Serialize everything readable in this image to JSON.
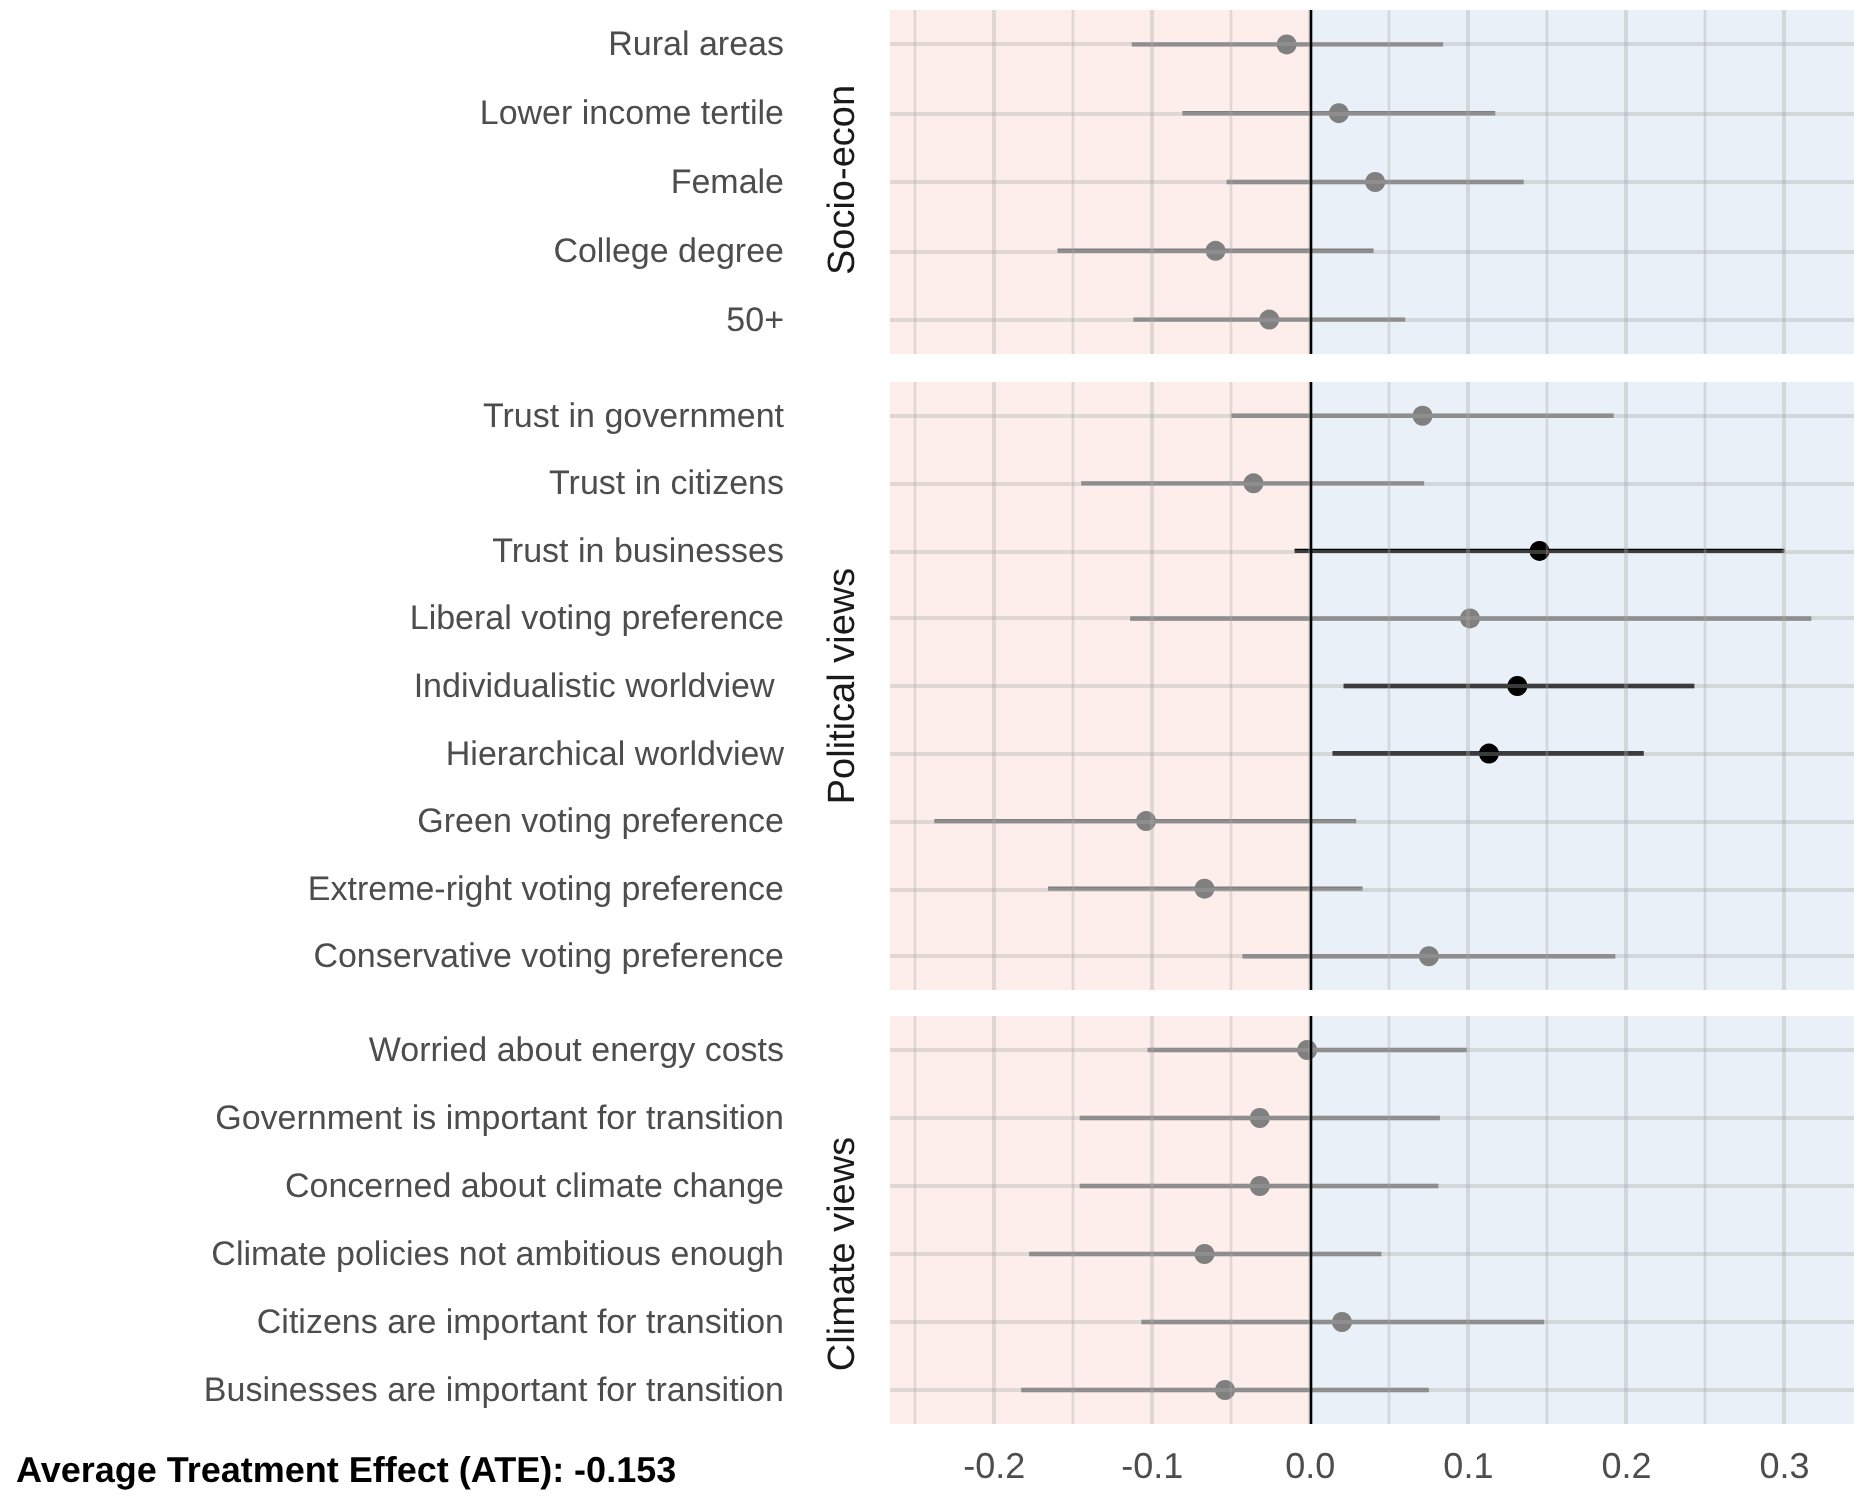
{
  "chart_data": [
    {
      "type": "scatter",
      "orientation": "horizontal",
      "ylabel": "Socio-econ",
      "categories": [
        "Rural areas",
        "Lower income tertile",
        "Female",
        "College degree",
        "50+"
      ],
      "series": [
        {
          "color": "#808080",
          "values": [
            -0.015,
            0.018,
            0.041,
            -0.06,
            -0.026
          ],
          "errors": [
            [
              -0.113,
              0.084
            ],
            [
              -0.081,
              0.117
            ],
            [
              -0.053,
              0.135
            ],
            [
              -0.16,
              0.04
            ],
            [
              -0.112,
              0.06
            ]
          ]
        }
      ],
      "xlim": [
        -0.266,
        0.344
      ],
      "xticks": [
        {
          "value": -0.25,
          "label": null
        },
        -0.2,
        {
          "value": -0.15,
          "label": null
        },
        -0.1,
        {
          "value": -0.05,
          "label": null
        },
        0,
        {
          "value": 0.05,
          "label": null
        },
        0.1,
        {
          "value": 0.15,
          "label": null
        },
        0.2,
        {
          "value": 0.25,
          "label": null
        },
        0.3
      ],
      "tick_labels": "y",
      "grid": true,
      "marker": "circle",
      "bands": [
        {
          "axis": "x",
          "from": -0.266,
          "to": 0,
          "color": "#fdeeec"
        },
        {
          "axis": "x",
          "from": 0,
          "to": 0.344,
          "color": "#e9f0f8"
        }
      ],
      "ref_lines": [
        {
          "axis": "x",
          "value": 0,
          "color": "#000000"
        }
      ]
    },
    {
      "type": "scatter",
      "orientation": "horizontal",
      "ylabel": "Political views",
      "categories": [
        "Trust in government",
        "Trust in citizens",
        "Trust in businesses",
        "Liberal voting preference",
        "Individualistic worldview ",
        "Hierarchical worldview",
        "Green voting preference",
        "Extreme-right voting preference",
        "Conservative voting preference"
      ],
      "series": [
        {
          "color": "#808080",
          "values": [
            0.071,
            -0.036,
            null,
            0.101,
            null,
            null,
            -0.104,
            -0.067,
            0.075
          ],
          "errors": [
            [
              -0.05,
              0.192
            ],
            [
              -0.145,
              0.072
            ],
            null,
            [
              -0.114,
              0.317
            ],
            null,
            null,
            [
              -0.238,
              0.029
            ],
            [
              -0.166,
              0.033
            ],
            [
              -0.043,
              0.193
            ]
          ]
        },
        {
          "color": "#000000",
          "values": [
            null,
            null,
            0.145,
            null,
            0.131,
            0.113,
            null,
            null,
            null
          ],
          "errors": [
            null,
            null,
            [
              -0.01,
              0.3
            ],
            null,
            [
              0.021,
              0.243
            ],
            [
              0.014,
              0.211
            ],
            null,
            null,
            null
          ]
        }
      ],
      "xlim": [
        -0.266,
        0.344
      ],
      "xticks": [
        {
          "value": -0.25,
          "label": null
        },
        -0.2,
        {
          "value": -0.15,
          "label": null
        },
        -0.1,
        {
          "value": -0.05,
          "label": null
        },
        0,
        {
          "value": 0.05,
          "label": null
        },
        0.1,
        {
          "value": 0.15,
          "label": null
        },
        0.2,
        {
          "value": 0.25,
          "label": null
        },
        0.3
      ],
      "tick_labels": "y",
      "grid": true,
      "marker": "circle",
      "bands": [
        {
          "axis": "x",
          "from": -0.266,
          "to": 0,
          "color": "#fdeeec"
        },
        {
          "axis": "x",
          "from": 0,
          "to": 0.344,
          "color": "#e9f0f8"
        }
      ],
      "ref_lines": [
        {
          "axis": "x",
          "value": 0,
          "color": "#000000"
        }
      ]
    },
    {
      "type": "scatter",
      "orientation": "horizontal",
      "ylabel": "Climate views",
      "categories": [
        "Worried about energy costs",
        "Government is important for transition",
        "Concerned about climate change",
        "Climate policies not ambitious enough",
        "Citizens are important for transition",
        "Businesses are important for transition"
      ],
      "series": [
        {
          "color": "#808080",
          "values": [
            -0.002,
            -0.032,
            -0.032,
            -0.067,
            0.02,
            -0.054
          ],
          "errors": [
            [
              -0.103,
              0.099
            ],
            [
              -0.146,
              0.082
            ],
            [
              -0.146,
              0.081
            ],
            [
              -0.178,
              0.045
            ],
            [
              -0.107,
              0.148
            ],
            [
              -0.183,
              0.075
            ]
          ]
        }
      ],
      "xlim": [
        -0.266,
        0.344
      ],
      "xticks": [
        {
          "value": -0.25,
          "label": null
        },
        {
          "value": -0.2,
          "label": "-0.2"
        },
        {
          "value": -0.15,
          "label": null
        },
        {
          "value": -0.1,
          "label": "-0.1"
        },
        {
          "value": -0.05,
          "label": null
        },
        {
          "value": 0,
          "label": "0.0"
        },
        {
          "value": 0.05,
          "label": null
        },
        {
          "value": 0.1,
          "label": "0.1"
        },
        {
          "value": 0.15,
          "label": null
        },
        {
          "value": 0.2,
          "label": "0.2"
        },
        {
          "value": 0.25,
          "label": null
        },
        {
          "value": 0.3,
          "label": "0.3"
        }
      ],
      "grid": true,
      "marker": "circle",
      "bands": [
        {
          "axis": "x",
          "from": -0.266,
          "to": 0,
          "color": "#fdeeec"
        },
        {
          "axis": "x",
          "from": 0,
          "to": 0.344,
          "color": "#e9f0f8"
        }
      ],
      "ref_lines": [
        {
          "axis": "x",
          "value": 0,
          "color": "#000000"
        }
      ],
      "annotations": [
        "Average Treatment Effect (ATE): -0.153"
      ]
    }
  ]
}
